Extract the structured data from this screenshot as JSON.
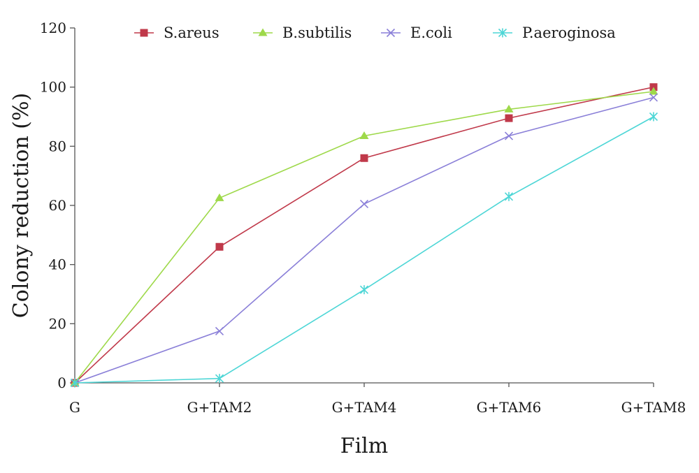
{
  "chart_data": {
    "type": "line",
    "xlabel": "Film",
    "ylabel": "Colony reduction (%)",
    "categories": [
      "G",
      "G+TAM2",
      "G+TAM4",
      "G+TAM6",
      "G+TAM8"
    ],
    "ylim": [
      0,
      120
    ],
    "yticks": [
      "0",
      "20",
      "40",
      "60",
      "80",
      "100",
      "120"
    ],
    "grid": false,
    "legend_position": "top",
    "series": [
      {
        "name": "S.areus",
        "marker": "square",
        "color": "#c0394a",
        "values": [
          0,
          46,
          76,
          89.5,
          100
        ]
      },
      {
        "name": "B.subtilis",
        "marker": "triangle",
        "color": "#9ed94a",
        "values": [
          0,
          62.5,
          83.5,
          92.5,
          98.5
        ]
      },
      {
        "name": "E.coli",
        "marker": "x",
        "color": "#8a7fd8",
        "values": [
          0,
          17.5,
          60.5,
          83.5,
          96.5
        ]
      },
      {
        "name": "P.aeroginosa",
        "marker": "asterisk",
        "color": "#4dd6d6",
        "values": [
          0,
          1.5,
          31.5,
          63,
          90
        ]
      }
    ]
  }
}
